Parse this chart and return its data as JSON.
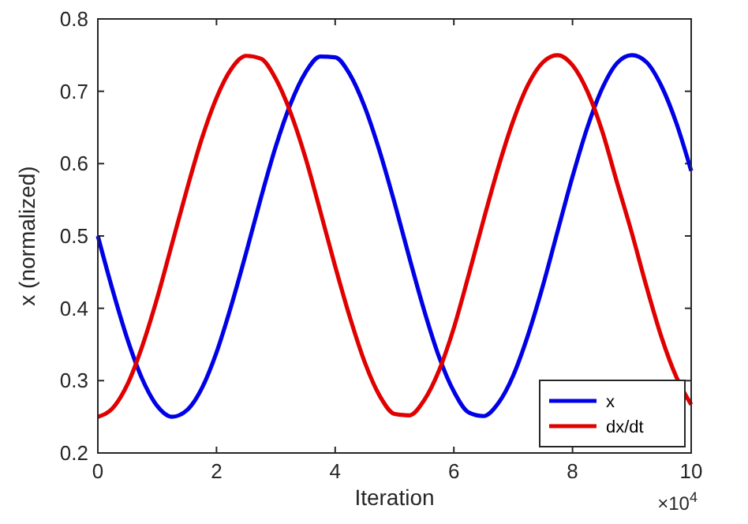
{
  "chart_data": {
    "type": "line",
    "xlabel": "Iteration",
    "ylabel": "x (normalized)",
    "annotations": [
      "×10$^{4}$"
    ],
    "x": [
      0,
      0.25,
      0.5,
      0.75,
      1,
      1.25,
      1.5,
      1.75,
      2,
      2.25,
      2.5,
      2.75,
      3,
      3.25,
      3.5,
      3.75,
      4,
      4.25,
      4.5,
      4.75,
      5,
      5.25,
      5.5,
      5.75,
      6,
      6.25,
      6.5,
      6.75,
      7,
      7.25,
      7.5,
      7.75,
      8,
      8.25,
      8.5,
      8.75,
      9,
      9.25,
      9.5,
      9.75,
      10
    ],
    "series": [
      {
        "name": "x",
        "color": "#0000e6",
        "values": [
          0.5,
          0.425,
          0.357,
          0.302,
          0.265,
          0.25,
          0.259,
          0.289,
          0.339,
          0.404,
          0.477,
          0.553,
          0.624,
          0.683,
          0.726,
          0.748,
          0.747,
          0.723,
          0.678,
          0.617,
          0.546,
          0.47,
          0.397,
          0.333,
          0.285,
          0.256,
          0.251,
          0.269,
          0.307,
          0.363,
          0.431,
          0.507,
          0.582,
          0.65,
          0.704,
          0.739,
          0.75,
          0.74,
          0.707,
          0.656,
          0.59
        ]
      },
      {
        "name": "dx/dt",
        "color": "#e00000",
        "values": [
          0.25,
          0.262,
          0.295,
          0.348,
          0.414,
          0.489,
          0.564,
          0.634,
          0.691,
          0.731,
          0.749,
          0.745,
          0.717,
          0.67,
          0.608,
          0.534,
          0.458,
          0.387,
          0.325,
          0.279,
          0.254,
          0.252,
          0.273,
          0.314,
          0.373,
          0.446,
          0.522,
          0.595,
          0.659,
          0.709,
          0.74,
          0.75,
          0.736,
          0.7,
          0.645,
          0.574,
          0.504,
          0.429,
          0.36,
          0.305,
          0.267
        ]
      }
    ],
    "xlim": [
      0,
      10
    ],
    "xticks": [
      0,
      2,
      4,
      6,
      8,
      10
    ],
    "ylim": [
      0.2,
      0.8
    ],
    "yticks": [
      0.2,
      0.3,
      0.4,
      0.5,
      0.6,
      0.7,
      0.8
    ],
    "grid": false,
    "legend": "bottom right",
    "marker": "none",
    "line_style": "solid"
  }
}
